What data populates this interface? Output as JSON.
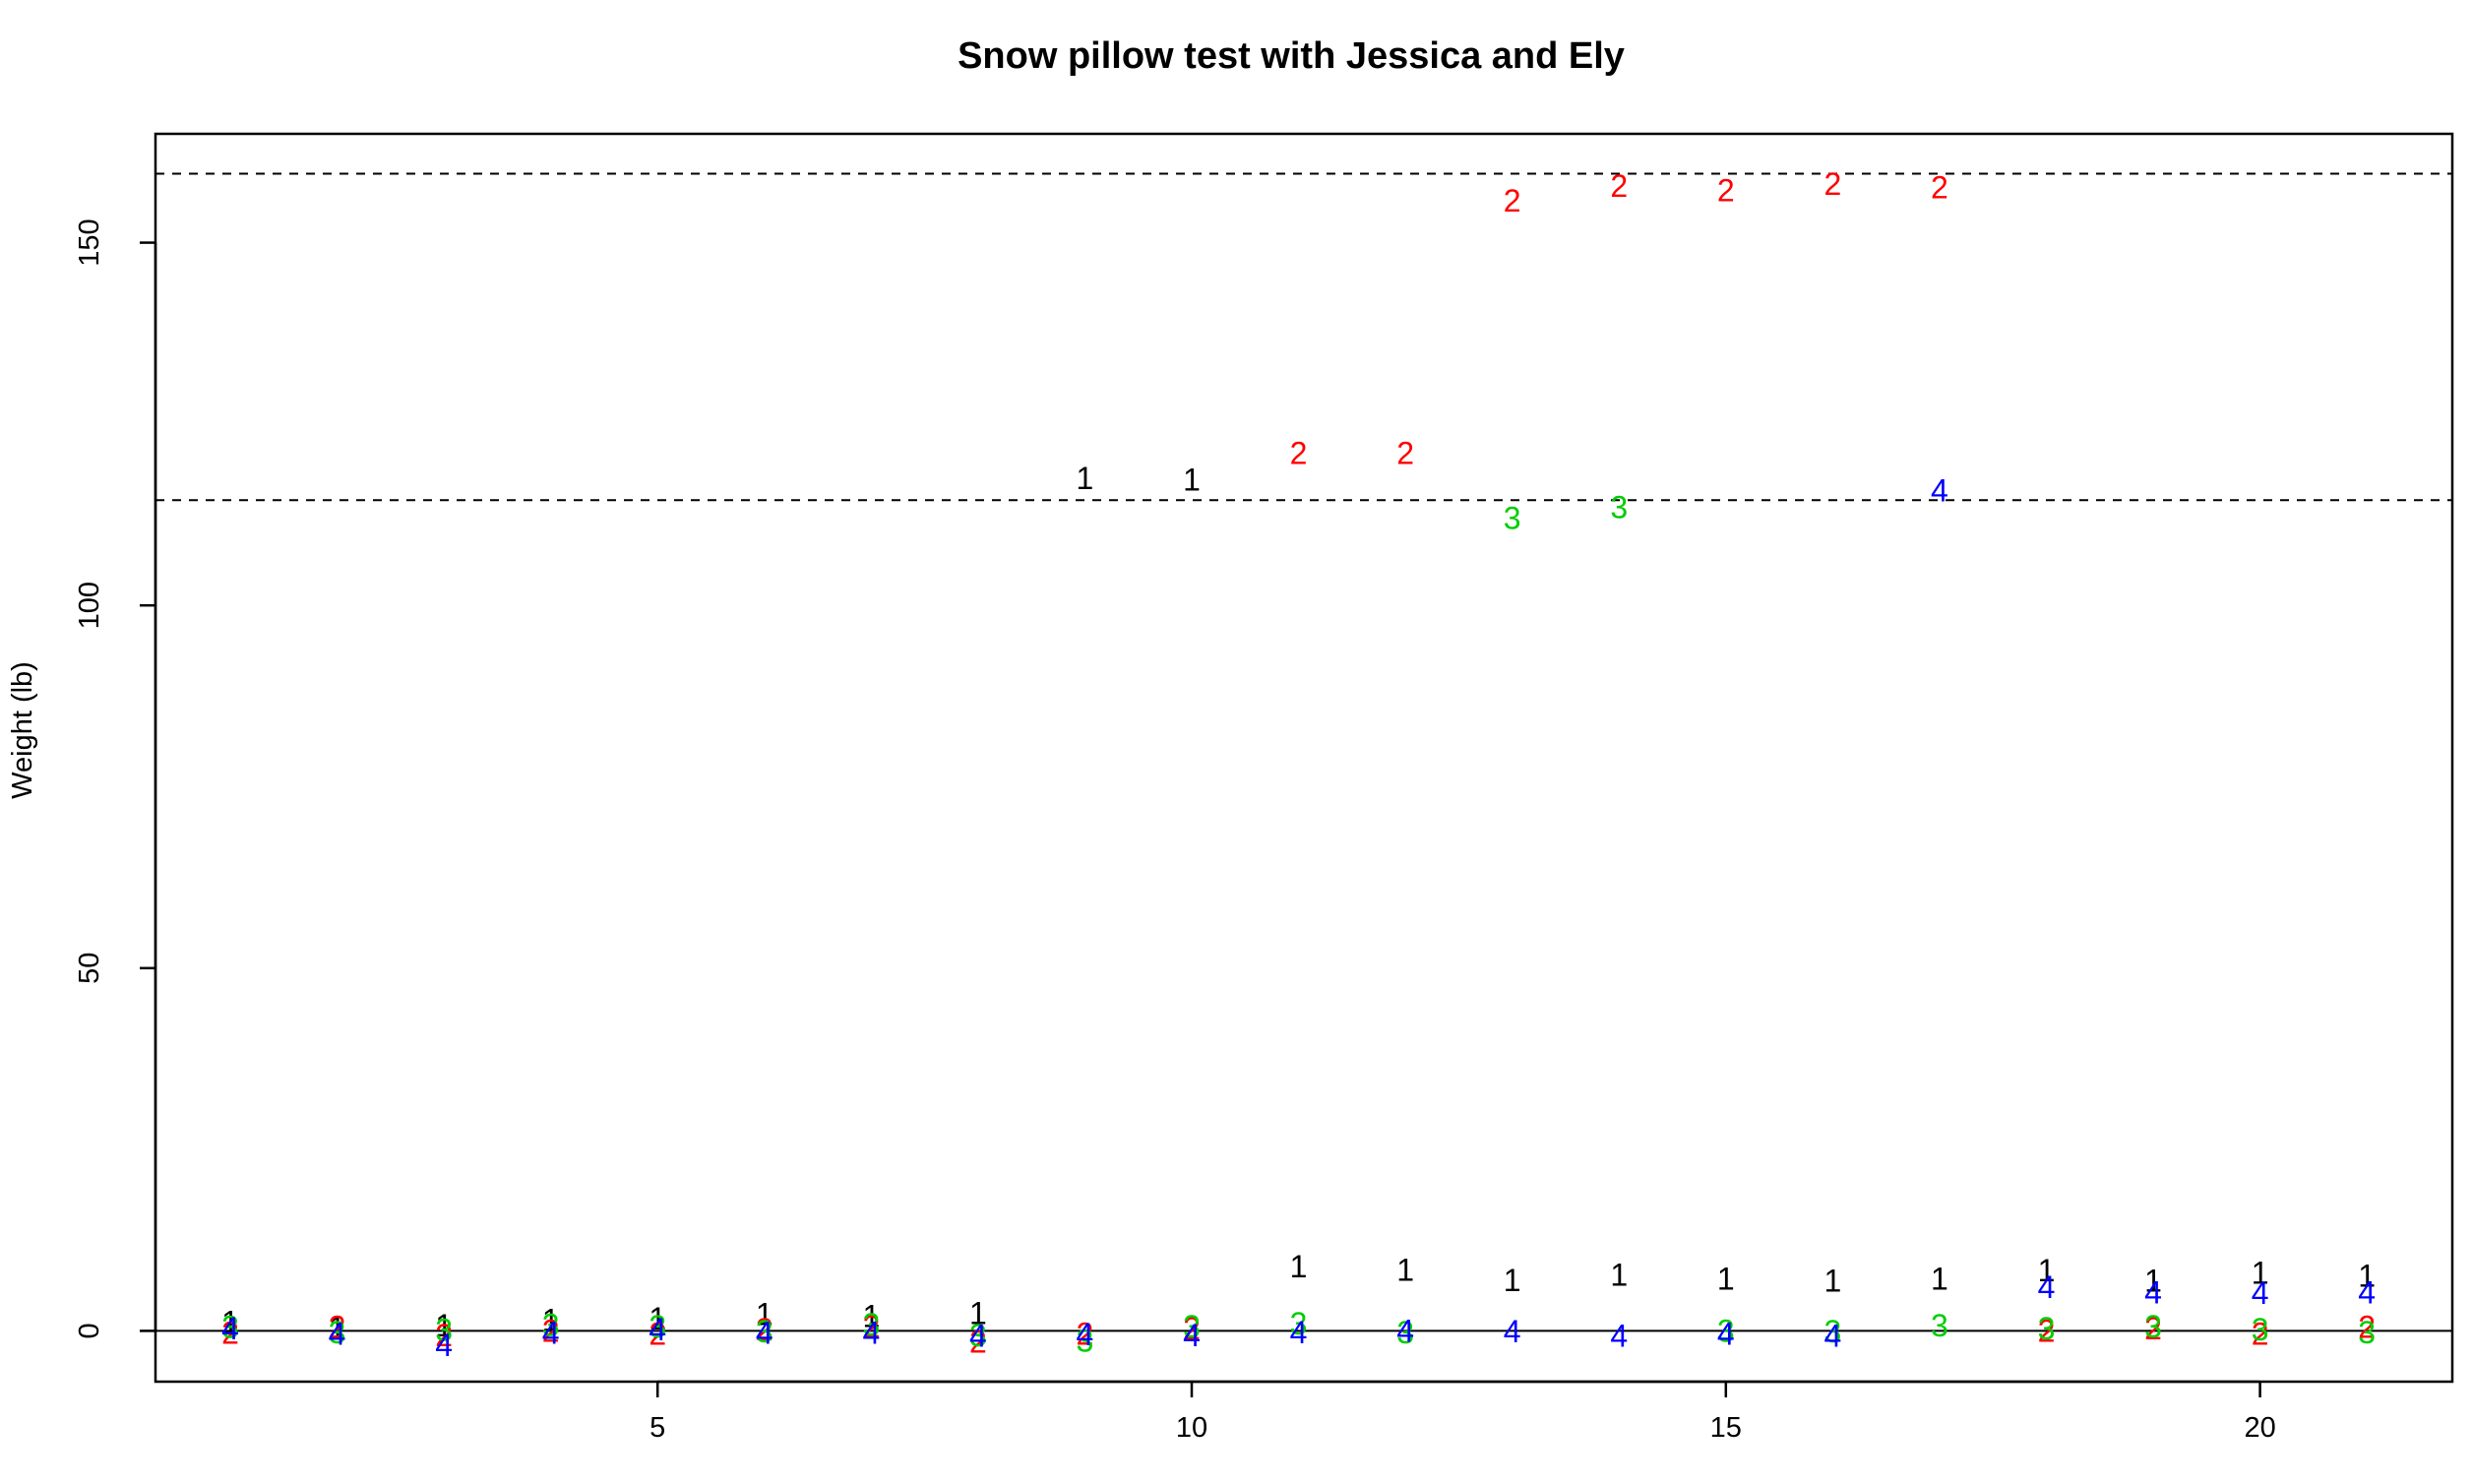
{
  "chart_data": {
    "type": "scatter",
    "title": "Snow pillow test with Jessica and Ely",
    "xlabel": "",
    "ylabel": "Weight (lb)",
    "xlim": [
      0.3,
      21.8
    ],
    "ylim": [
      -7,
      165
    ],
    "x_ticks": [
      5,
      10,
      15,
      20
    ],
    "y_ticks": [
      0,
      50,
      100,
      150
    ],
    "hlines_solid": [
      0
    ],
    "hlines_dashed": [
      114.5,
      159.5
    ],
    "x": [
      1,
      2,
      3,
      4,
      5,
      6,
      7,
      8,
      9,
      10,
      11,
      12,
      13,
      14,
      15,
      16,
      17,
      18,
      19,
      20,
      21
    ],
    "series": [
      {
        "symbol": "1",
        "color": "#000000",
        "values": [
          1.2,
          0.4,
          0.7,
          1.5,
          1.7,
          2.3,
          2.0,
          2.4,
          117.5,
          117.3,
          8.9,
          8.4,
          7.0,
          7.7,
          7.2,
          6.9,
          7.2,
          8.3,
          6.9,
          8.0,
          7.6
        ]
      },
      {
        "symbol": "2",
        "color": "#ff0000",
        "values": [
          -0.3,
          0.5,
          -0.6,
          0.0,
          -0.4,
          0.2,
          0.6,
          -1.5,
          -0.4,
          0.3,
          121.0,
          121.0,
          155.8,
          157.8,
          157.2,
          158.1,
          157.6,
          0.0,
          0.3,
          -0.4,
          0.5
        ]
      },
      {
        "symbol": "3",
        "color": "#00cd00",
        "values": [
          0.5,
          -0.2,
          0.1,
          0.8,
          0.6,
          -0.1,
          0.9,
          -0.6,
          -1.4,
          0.6,
          1.0,
          -0.2,
          112.0,
          113.5,
          0.0,
          -0.1,
          0.7,
          0.3,
          0.6,
          0.2,
          -0.2
        ]
      },
      {
        "symbol": "4",
        "color": "#0000ff",
        "values": [
          0.3,
          -0.4,
          -2.0,
          -0.3,
          0.2,
          -0.3,
          -0.3,
          -0.7,
          -0.5,
          -0.6,
          -0.2,
          0.0,
          -0.1,
          -0.7,
          -0.4,
          -0.7,
          115.8,
          6.0,
          5.3,
          5.2,
          5.3
        ]
      }
    ]
  }
}
